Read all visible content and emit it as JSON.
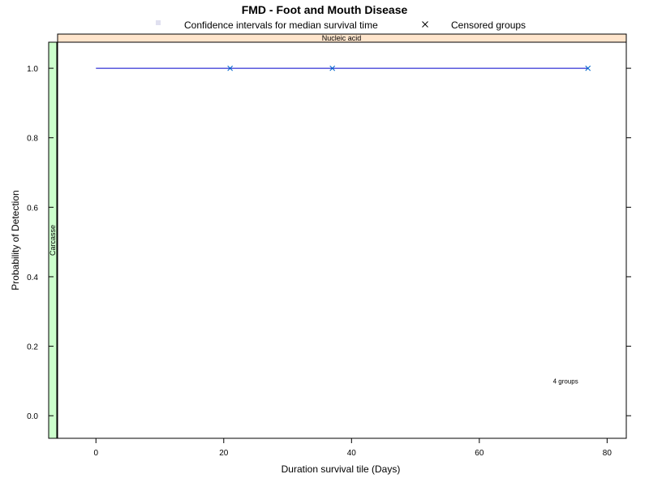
{
  "chart_data": {
    "type": "line",
    "title": "FMD - Foot and Mouth Disease",
    "xlabel": "Duration survival tile (Days)",
    "ylabel": "Probability of Detection",
    "xlim": [
      -6,
      83
    ],
    "ylim": [
      -0.065,
      1.075
    ],
    "x_ticks": [
      0,
      20,
      40,
      60,
      80
    ],
    "y_ticks": [
      0.0,
      0.2,
      0.4,
      0.6,
      0.8,
      1.0
    ],
    "x_tick_labels": [
      "0",
      "20",
      "40",
      "60",
      "80"
    ],
    "y_tick_labels": [
      "0.0",
      "0.2",
      "0.4",
      "0.6",
      "0.8",
      "1.0"
    ],
    "grid": false,
    "legend": {
      "position": "top",
      "entries": [
        {
          "label": "Confidence intervals for median survival time",
          "symbol": "square",
          "color": "#e0e0f0"
        },
        {
          "label": "Censored groups",
          "symbol": "x",
          "color": "#000000"
        }
      ]
    },
    "strip_top": {
      "label": "Nucleic acid",
      "color": "#ffe5cc"
    },
    "strip_left": {
      "label": "Carcasse",
      "color": "#ccffcc"
    },
    "series": [
      {
        "x": [
          0,
          77
        ],
        "y": [
          1.0,
          1.0
        ],
        "color": "#0000cc"
      }
    ],
    "censored": {
      "x": [
        21,
        37,
        77
      ],
      "y": [
        1.0,
        1.0,
        1.0
      ],
      "color": "#0066cc"
    },
    "annotation": {
      "text": "4 groups",
      "x": 73.5,
      "y": 0.1
    }
  }
}
